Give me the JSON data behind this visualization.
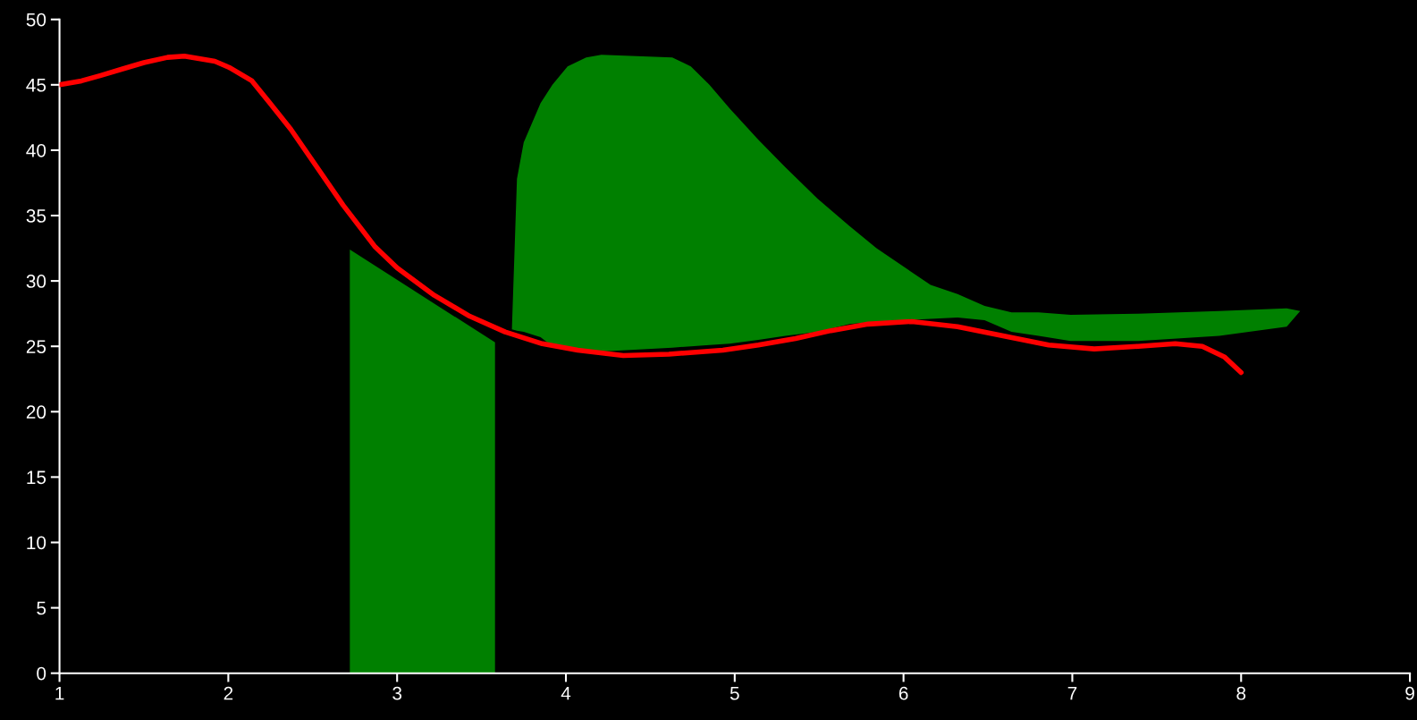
{
  "chart_data": {
    "type": "area",
    "xlim": [
      1,
      9
    ],
    "ylim": [
      0,
      50
    ],
    "xticks": [
      1,
      2,
      3,
      4,
      5,
      6,
      7,
      8,
      9
    ],
    "yticks": [
      0,
      5,
      10,
      15,
      20,
      25,
      30,
      35,
      40,
      45,
      50
    ],
    "grid": false,
    "legend": false,
    "marker": "none",
    "line_style": "solid",
    "series": [
      {
        "color": "#008000",
        "x": [
          2.72,
          3.58
        ],
        "values": [
          32.4,
          25.3
        ]
      },
      {
        "color": "#008000",
        "x": [
          3.68,
          3.71,
          3.75,
          3.85,
          3.92,
          4.01,
          4.12,
          4.21,
          4.63,
          4.74,
          4.85,
          4.97,
          5.14,
          5.3,
          5.49,
          5.68,
          5.84,
          6.0,
          6.16,
          6.32,
          6.48,
          6.64,
          6.8,
          6.99,
          7.39,
          7.87,
          8.27,
          8.35,
          8.27,
          7.87,
          7.39,
          6.99,
          6.8,
          6.64,
          6.48,
          6.32,
          6.16,
          6.0,
          5.84,
          5.68,
          5.49,
          5.3,
          5.14,
          4.97,
          4.85,
          4.74,
          4.63,
          4.21,
          4.12,
          4.01,
          3.92,
          3.85,
          3.75,
          3.71
        ],
        "values": [
          26.3,
          37.8,
          40.6,
          43.6,
          45.0,
          46.4,
          47.1,
          47.3,
          47.1,
          46.4,
          45.0,
          43.2,
          40.8,
          38.7,
          36.3,
          34.2,
          32.5,
          31.1,
          29.7,
          29.0,
          28.1,
          27.6,
          27.6,
          27.4,
          27.5,
          27.7,
          27.9,
          27.7,
          26.5,
          25.8,
          25.4,
          25.4,
          25.8,
          26.1,
          27.0,
          27.2,
          27.1,
          27.0,
          26.9,
          26.7,
          26.1,
          25.8,
          25.5,
          25.2,
          25.1,
          25.0,
          24.9,
          24.6,
          24.7,
          25.0,
          25.0,
          25.7,
          26.1,
          26.2
        ]
      },
      {
        "type": "line",
        "color": "#ff0000",
        "x": [
          1.0,
          1.13,
          1.24,
          1.37,
          1.5,
          1.64,
          1.74,
          1.92,
          2.01,
          2.14,
          2.24,
          2.37,
          2.52,
          2.68,
          2.87,
          3.0,
          3.22,
          3.43,
          3.64,
          3.86,
          4.07,
          4.34,
          4.61,
          4.93,
          5.14,
          5.36,
          5.57,
          5.79,
          6.05,
          6.32,
          6.59,
          6.86,
          7.13,
          7.39,
          7.61,
          7.77,
          7.9,
          8.0
        ],
        "values": [
          45.0,
          45.3,
          45.7,
          46.2,
          46.7,
          47.1,
          47.2,
          46.8,
          46.3,
          45.3,
          43.7,
          41.6,
          38.8,
          35.8,
          32.6,
          31.0,
          28.9,
          27.3,
          26.1,
          25.2,
          24.7,
          24.3,
          24.4,
          24.7,
          25.1,
          25.6,
          26.2,
          26.7,
          26.9,
          26.5,
          25.8,
          25.1,
          24.8,
          25.0,
          25.2,
          25.0,
          24.2,
          23.0
        ]
      }
    ]
  }
}
